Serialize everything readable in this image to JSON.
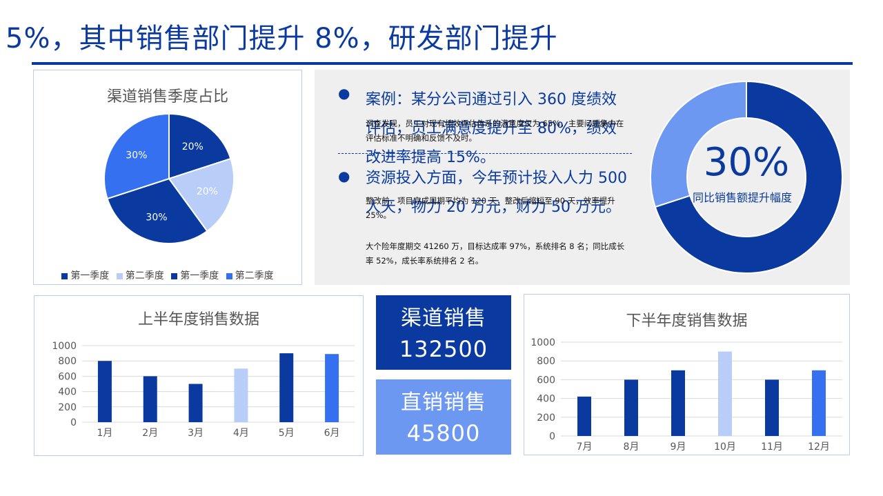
{
  "title": "5%，其中销售部门提升 8%，研发部门提升",
  "colors": {
    "dark_blue": "#0a3aa0",
    "light_blue": "#b8cdf7",
    "bright_blue": "#3570f0",
    "box_light": "#6c98f2"
  },
  "case_panel": {
    "bullet1": "案例：某分公司通过引入 360 度绩效评估，员工满意度提升至 80%，绩效改进率提高 15%。",
    "para1": "调查发现，员工对现有绩效评估体系的满意度仅为 65%，主要问题集中在评估标准不明确和反馈不及时。",
    "bullet2": "资源投入方面，今年预计投入人力 500 人天，物力 20 万元，财力 50 万元。",
    "para2": "整改前，项目完成周期平均为 120 天，整改后缩短至 90 天，效率提升 25%。",
    "para3": "大个险年度期交 41260 万，目标达成率 97%，系统排名 8 名；同比成长率 52%，成长率系统排名 2 名。",
    "donut_value": "30%",
    "donut_label": "同比销售额提升幅度",
    "donut_fraction": 0.3
  },
  "stats": {
    "channel_label": "渠道销售",
    "channel_value": "132500",
    "direct_label": "直销销售",
    "direct_value": "45800"
  },
  "chart_data": [
    {
      "type": "pie",
      "title": "渠道销售季度占比",
      "categories": [
        "第一季度",
        "第二季度",
        "第一季度",
        "第二季度"
      ],
      "values": [
        20,
        20,
        30,
        30
      ],
      "labels": [
        "20%",
        "20%",
        "30%",
        "30%"
      ],
      "colors": [
        "#0a3aa0",
        "#b8cdf7",
        "#0a3aa0",
        "#3570f0"
      ],
      "legend": "bottom"
    },
    {
      "type": "bar",
      "title": "上半年度销售数据",
      "categories": [
        "1月",
        "2月",
        "3月",
        "4月",
        "5月",
        "6月"
      ],
      "values": [
        800,
        600,
        500,
        700,
        900,
        890
      ],
      "colors": [
        "#0a3aa0",
        "#0a3aa0",
        "#0a3aa0",
        "#b8cdf7",
        "#0a3aa0",
        "#3570f0"
      ],
      "ylim": [
        0,
        1000
      ],
      "yticks": [
        0,
        200,
        400,
        600,
        800,
        1000
      ],
      "grid": true
    },
    {
      "type": "bar",
      "title": "下半年度销售数据",
      "categories": [
        "7月",
        "8月",
        "9月",
        "10月",
        "11月",
        "12月"
      ],
      "values": [
        420,
        600,
        700,
        900,
        600,
        700
      ],
      "colors": [
        "#0a3aa0",
        "#0a3aa0",
        "#0a3aa0",
        "#b8cdf7",
        "#0a3aa0",
        "#3570f0"
      ],
      "ylim": [
        0,
        1000
      ],
      "yticks": [
        0,
        200,
        400,
        600,
        800,
        1000
      ],
      "grid": true
    }
  ]
}
